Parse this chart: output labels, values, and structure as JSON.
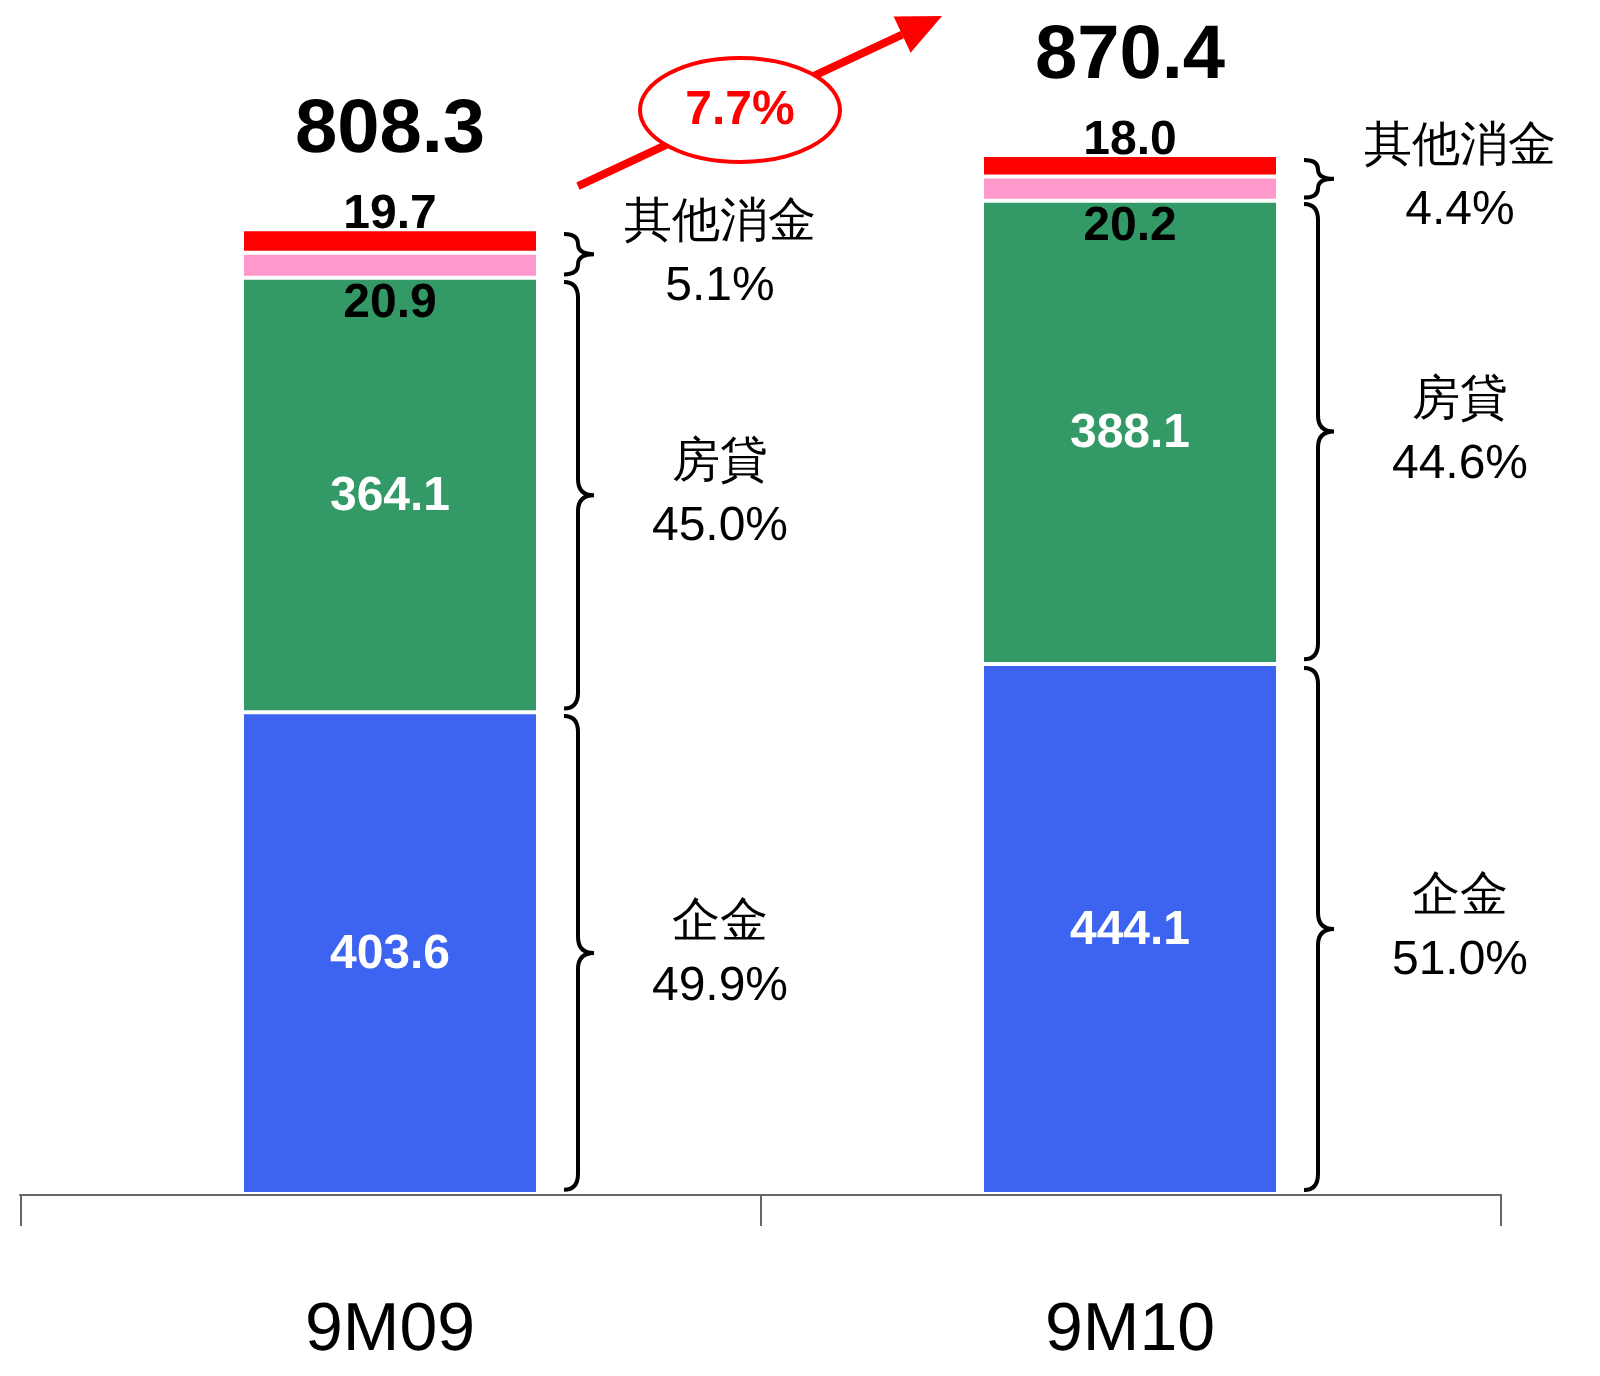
{
  "chart_data": {
    "type": "bar",
    "stacked": true,
    "data_labels": true,
    "categories": [
      "9M09",
      "9M10"
    ],
    "series": [
      {
        "color": "#3c64f0",
        "values": [
          403.6,
          444.1
        ]
      },
      {
        "color": "#339966",
        "values": [
          364.1,
          388.1
        ]
      },
      {
        "color": "#ff99cc",
        "values": [
          20.9,
          20.2
        ]
      },
      {
        "color": "#ff0000",
        "values": [
          19.7,
          18.0
        ],
        "value_labels": [
          "19.7",
          "18.0"
        ]
      }
    ],
    "totals": [
      "808.3",
      "870.4"
    ],
    "annotations": [
      "企金\n49.9%",
      "房貸\n45.0%",
      "其他消金\n5.1%",
      "企金\n51.0%",
      "房貸\n44.6%",
      "其他消金\n4.4%",
      "7.7%"
    ]
  }
}
